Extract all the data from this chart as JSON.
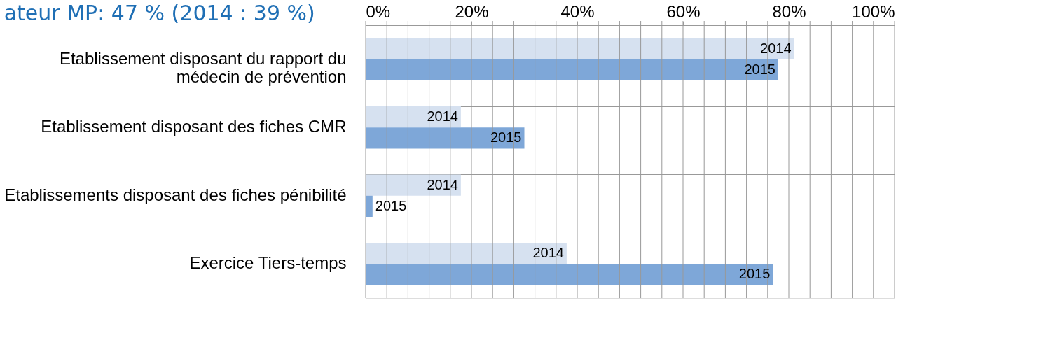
{
  "chart_data": {
    "type": "bar",
    "orientation": "horizontal",
    "title": "ateur MP: 47 % (2014 : 39 %)",
    "categories": [
      "Etablissement disposant du rapport du\nmédecin de prévention",
      "Etablissement disposant des fiches CMR",
      "Etablissements disposant des fiches pénibilité",
      "Exercice Tiers-temps"
    ],
    "series": [
      {
        "name": "2014",
        "color": "#d6e1f0",
        "values": [
          81,
          18,
          18,
          38
        ]
      },
      {
        "name": "2015",
        "color": "#7ea7d8",
        "values": [
          78,
          30,
          1.3,
          77
        ]
      }
    ],
    "xlim": [
      0,
      100
    ],
    "xticks": [
      {
        "value": 0,
        "label": "0%"
      },
      {
        "value": 4,
        "label": null
      },
      {
        "value": 8,
        "label": null
      },
      {
        "value": 12,
        "label": null
      },
      {
        "value": 16,
        "label": null
      },
      {
        "value": 20,
        "label": "20%"
      },
      {
        "value": 24,
        "label": null
      },
      {
        "value": 28,
        "label": null
      },
      {
        "value": 32,
        "label": null
      },
      {
        "value": 36,
        "label": null
      },
      {
        "value": 40,
        "label": "40%"
      },
      {
        "value": 44,
        "label": null
      },
      {
        "value": 48,
        "label": null
      },
      {
        "value": 52,
        "label": null
      },
      {
        "value": 56,
        "label": null
      },
      {
        "value": 60,
        "label": "60%"
      },
      {
        "value": 64,
        "label": null
      },
      {
        "value": 68,
        "label": null
      },
      {
        "value": 72,
        "label": null
      },
      {
        "value": 76,
        "label": null
      },
      {
        "value": 80,
        "label": "80%"
      },
      {
        "value": 84,
        "label": null
      },
      {
        "value": 88,
        "label": null
      },
      {
        "value": 92,
        "label": null
      },
      {
        "value": 96,
        "label": null
      },
      {
        "value": 100,
        "label": "100%"
      }
    ],
    "grid": true,
    "legend": false
  }
}
